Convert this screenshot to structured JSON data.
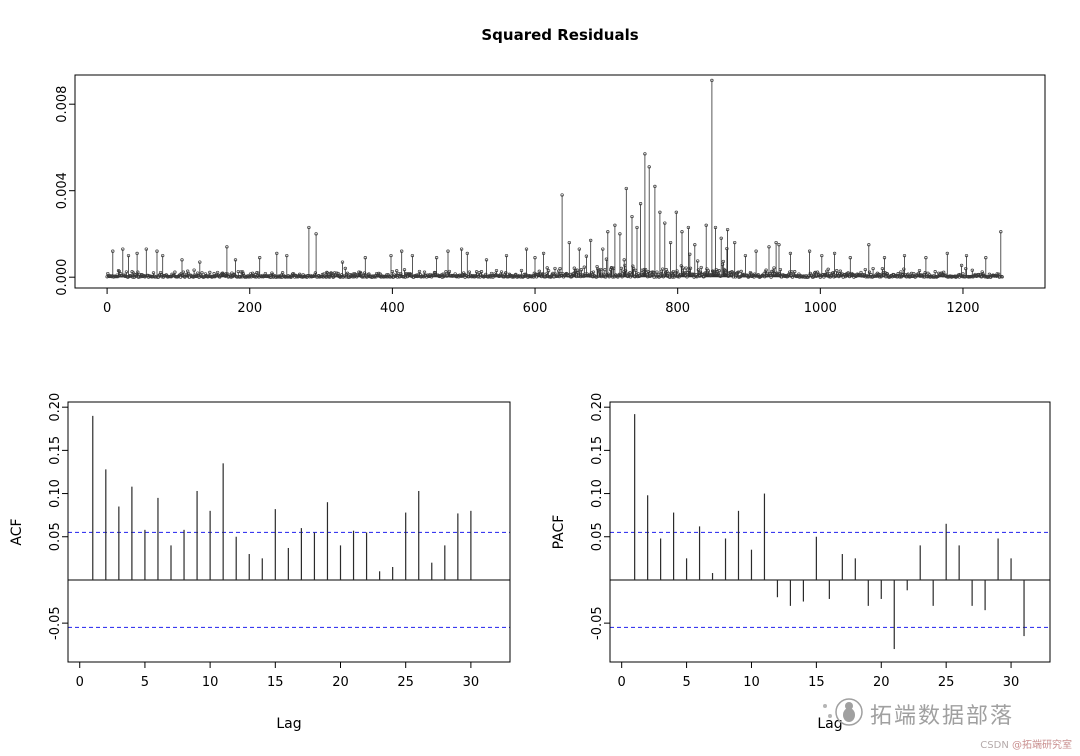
{
  "page": {
    "background": "#ffffff"
  },
  "watermark": {
    "brand": "拓端数据部落",
    "credit_prefix": "CSDN ",
    "credit_name": "@拓端研究室",
    "color": "#a0a0a0"
  },
  "chart_data": [
    {
      "type": "line",
      "subtype": "stem-with-points",
      "title": "Squared Residuals",
      "xlabel": "",
      "ylabel": "",
      "xlim": [
        0,
        1256
      ],
      "ylim": [
        0,
        0.0092
      ],
      "grid": false,
      "xticks": [
        0,
        200,
        400,
        600,
        800,
        1000,
        1200
      ],
      "yticks": [
        {
          "v": 0.0,
          "label": "0.000"
        },
        {
          "v": 0.004,
          "label": "0.004"
        },
        {
          "v": 0.008,
          "label": "0.008"
        }
      ],
      "n_points": 1256,
      "baseline_scale": 8e-05,
      "dense_regions": [
        [
          600,
          880,
          2.2
        ],
        [
          920,
          965,
          1.8
        ]
      ],
      "spikes": [
        [
          8,
          0.0012
        ],
        [
          22,
          0.0013
        ],
        [
          30,
          0.001
        ],
        [
          42,
          0.0011
        ],
        [
          55,
          0.0013
        ],
        [
          70,
          0.0012
        ],
        [
          78,
          0.001
        ],
        [
          105,
          0.0008
        ],
        [
          130,
          0.0007
        ],
        [
          168,
          0.0014
        ],
        [
          180,
          0.0008
        ],
        [
          214,
          0.0009
        ],
        [
          238,
          0.0011
        ],
        [
          252,
          0.001
        ],
        [
          283,
          0.0023
        ],
        [
          293,
          0.002
        ],
        [
          330,
          0.0007
        ],
        [
          362,
          0.0009
        ],
        [
          398,
          0.001
        ],
        [
          413,
          0.0012
        ],
        [
          428,
          0.001
        ],
        [
          462,
          0.0009
        ],
        [
          478,
          0.0012
        ],
        [
          497,
          0.0013
        ],
        [
          505,
          0.0011
        ],
        [
          532,
          0.0008
        ],
        [
          560,
          0.001
        ],
        [
          588,
          0.0013
        ],
        [
          600,
          0.0009
        ],
        [
          612,
          0.0011
        ],
        [
          638,
          0.0038
        ],
        [
          648,
          0.0016
        ],
        [
          662,
          0.0013
        ],
        [
          678,
          0.0017
        ],
        [
          695,
          0.0013
        ],
        [
          702,
          0.0021
        ],
        [
          712,
          0.0024
        ],
        [
          719,
          0.002
        ],
        [
          728,
          0.0041
        ],
        [
          736,
          0.0028
        ],
        [
          743,
          0.0023
        ],
        [
          748,
          0.0034
        ],
        [
          754,
          0.0057
        ],
        [
          760,
          0.0051
        ],
        [
          768,
          0.0042
        ],
        [
          775,
          0.003
        ],
        [
          782,
          0.0025
        ],
        [
          790,
          0.0016
        ],
        [
          798,
          0.003
        ],
        [
          806,
          0.0021
        ],
        [
          815,
          0.0023
        ],
        [
          824,
          0.0015
        ],
        [
          840,
          0.0024
        ],
        [
          848,
          0.0091
        ],
        [
          853,
          0.0023
        ],
        [
          861,
          0.0018
        ],
        [
          870,
          0.0022
        ],
        [
          880,
          0.0016
        ],
        [
          895,
          0.001
        ],
        [
          910,
          0.0012
        ],
        [
          928,
          0.0014
        ],
        [
          938,
          0.0016
        ],
        [
          942,
          0.0015
        ],
        [
          958,
          0.0011
        ],
        [
          985,
          0.0012
        ],
        [
          1002,
          0.001
        ],
        [
          1020,
          0.0011
        ],
        [
          1042,
          0.0009
        ],
        [
          1068,
          0.0015
        ],
        [
          1090,
          0.0009
        ],
        [
          1118,
          0.001
        ],
        [
          1148,
          0.0009
        ],
        [
          1178,
          0.0011
        ],
        [
          1205,
          0.001
        ],
        [
          1232,
          0.0009
        ],
        [
          1253,
          0.0021
        ]
      ]
    },
    {
      "type": "bar",
      "subtype": "acf",
      "title": "",
      "xlabel": "Lag",
      "ylabel": "ACF",
      "xlim": [
        0,
        32
      ],
      "ylim": [
        -0.095,
        0.205
      ],
      "grid": false,
      "xticks": [
        0,
        5,
        10,
        15,
        20,
        25,
        30
      ],
      "yticks": [
        {
          "v": 0.2,
          "label": "0.20"
        },
        {
          "v": 0.15,
          "label": "0.15"
        },
        {
          "v": 0.1,
          "label": "0.10"
        },
        {
          "v": 0.05,
          "label": "0.05"
        },
        {
          "v": -0.05,
          "label": "-0.05"
        }
      ],
      "conf_bounds": [
        0.055,
        -0.055
      ],
      "conf_color": "#3b3bf0",
      "lags": [
        1,
        2,
        3,
        4,
        5,
        6,
        7,
        8,
        9,
        10,
        11,
        12,
        13,
        14,
        15,
        16,
        17,
        18,
        19,
        20,
        21,
        22,
        23,
        24,
        25,
        26,
        27,
        28,
        29,
        30
      ],
      "values": [
        0.19,
        0.128,
        0.085,
        0.108,
        0.058,
        0.095,
        0.04,
        0.058,
        0.103,
        0.08,
        0.135,
        0.05,
        0.03,
        0.025,
        0.082,
        0.037,
        0.06,
        0.055,
        0.09,
        0.04,
        0.057,
        0.055,
        0.01,
        0.015,
        0.078,
        0.103,
        0.02,
        0.04,
        0.077,
        0.08
      ]
    },
    {
      "type": "bar",
      "subtype": "pacf",
      "title": "",
      "xlabel": "Lag",
      "ylabel": "PACF",
      "xlim": [
        0,
        32
      ],
      "ylim": [
        -0.095,
        0.205
      ],
      "grid": false,
      "xticks": [
        0,
        5,
        10,
        15,
        20,
        25,
        30
      ],
      "yticks": [
        {
          "v": 0.2,
          "label": "0.20"
        },
        {
          "v": 0.15,
          "label": "0.15"
        },
        {
          "v": 0.1,
          "label": "0.10"
        },
        {
          "v": 0.05,
          "label": "0.05"
        },
        {
          "v": -0.05,
          "label": "-0.05"
        }
      ],
      "conf_bounds": [
        0.055,
        -0.055
      ],
      "conf_color": "#3b3bf0",
      "lags": [
        1,
        2,
        3,
        4,
        5,
        6,
        7,
        8,
        9,
        10,
        11,
        12,
        13,
        14,
        15,
        16,
        17,
        18,
        19,
        20,
        21,
        22,
        23,
        24,
        25,
        26,
        27,
        28,
        29,
        30,
        31
      ],
      "values": [
        0.192,
        0.098,
        0.048,
        0.078,
        0.025,
        0.062,
        0.008,
        0.048,
        0.08,
        0.035,
        0.1,
        -0.02,
        -0.03,
        -0.025,
        0.05,
        -0.022,
        0.03,
        0.025,
        -0.03,
        -0.022,
        -0.08,
        -0.012,
        0.04,
        -0.03,
        0.065,
        0.04,
        -0.03,
        -0.035,
        0.048,
        0.025,
        -0.065
      ]
    }
  ]
}
